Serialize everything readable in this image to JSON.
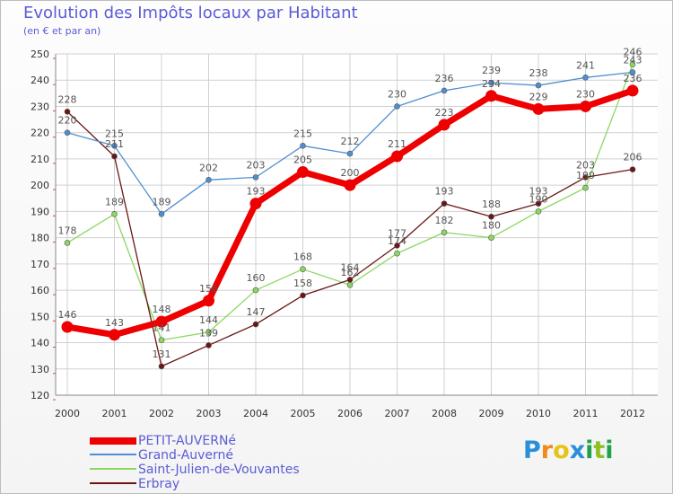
{
  "chart_data": {
    "type": "line",
    "title": "Evolution des Impôts locaux par Habitant",
    "subtitle": "(en € et par an)",
    "x": [
      "2000",
      "2001",
      "2002",
      "2003",
      "2004",
      "2005",
      "2006",
      "2007",
      "2008",
      "2009",
      "2010",
      "2011",
      "2012"
    ],
    "ylim": [
      120,
      250
    ],
    "yticks": [
      "120",
      "130",
      "140",
      "150",
      "160",
      "170",
      "180",
      "190",
      "200",
      "210",
      "220",
      "230",
      "240",
      "250"
    ],
    "grid": true,
    "legend_position": "bottom-left",
    "series": [
      {
        "name": "PETIT-AUVERNé",
        "color": "#ee0000",
        "values": [
          146,
          143,
          148,
          156,
          193,
          205,
          200,
          211,
          223,
          234,
          229,
          230,
          236
        ],
        "labels": [
          "146",
          "143",
          "148",
          "156",
          "193",
          "205",
          "200",
          "211",
          "223",
          "234",
          "229",
          "230",
          "236"
        ]
      },
      {
        "name": "Grand-Auverné",
        "color": "#4f8fd0",
        "values": [
          220,
          215,
          189,
          202,
          203,
          215,
          212,
          230,
          236,
          239,
          238,
          241,
          243
        ],
        "labels": [
          "220",
          "215",
          "189",
          "202",
          "203",
          "215",
          "212",
          "230",
          "236",
          "239",
          "238",
          "241",
          "243"
        ]
      },
      {
        "name": "Saint-Julien-de-Vouvantes",
        "color": "#8ad860",
        "values": [
          178,
          189,
          141,
          144,
          160,
          168,
          162,
          174,
          182,
          180,
          190,
          199,
          246
        ],
        "labels": [
          "178",
          "189",
          "141",
          "144",
          "160",
          "168",
          "162",
          "174",
          "182",
          "180",
          "190",
          "199",
          "246"
        ]
      },
      {
        "name": "Erbray",
        "color": "#6b1515",
        "values": [
          228,
          211,
          131,
          139,
          147,
          158,
          164,
          177,
          193,
          188,
          193,
          203,
          206
        ],
        "labels": [
          "228",
          "211",
          "131",
          "139",
          "147",
          "158",
          "164",
          "177",
          "193",
          "188",
          "193",
          "203",
          "206"
        ]
      }
    ]
  },
  "logo": {
    "letters": [
      "P",
      "r",
      "o",
      "x",
      "i",
      "t",
      "i"
    ],
    "colors": [
      "#2a8fd8",
      "#f08a1a",
      "#e8c316",
      "#2a8fd8",
      "#1fa24a",
      "#8fbf26",
      "#1fa24a"
    ]
  }
}
